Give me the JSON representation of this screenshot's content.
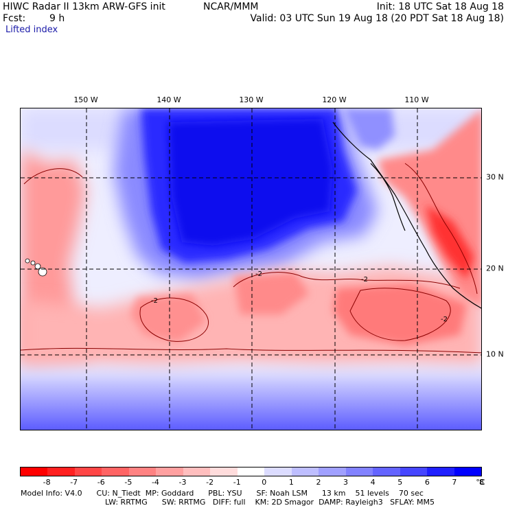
{
  "header": {
    "title": "HIWC Radar II 13km ARW-GFS init",
    "org": "NCAR/MMM",
    "fcst_label": "Fcst:",
    "fcst_value": "9 h",
    "init": "Init: 18 UTC Sat 18 Aug 18",
    "valid": "Valid: 03 UTC Sun 19 Aug 18 (20 PDT Sat 18 Aug 18)",
    "field": "Lifted index"
  },
  "axes": {
    "lon_labels": [
      "150 W",
      "140 W",
      "130 W",
      "120 W",
      "110 W"
    ],
    "lat_labels": [
      "30 N",
      "20 N",
      "10 N"
    ]
  },
  "contour_labels": [
    "-2",
    "-2",
    "-2",
    "-2"
  ],
  "colorbar": {
    "ticks": [
      "-8",
      "-7",
      "-6",
      "-5",
      "-4",
      "-3",
      "-2",
      "-1",
      "0",
      "1",
      "2",
      "3",
      "4",
      "5",
      "6",
      "7",
      "8"
    ],
    "unit": "°C",
    "colors": [
      "#ff0000",
      "#ff2020",
      "#ff4646",
      "#ff6464",
      "#ff8282",
      "#ffa0a0",
      "#ffbebe",
      "#ffdcdc",
      "#ffffff",
      "#dcdcff",
      "#bebeff",
      "#a0a0ff",
      "#8282ff",
      "#6464ff",
      "#4646ff",
      "#2020ff",
      "#0000ff"
    ]
  },
  "footer": {
    "line1": "Model Info: V4.0      CU: N_Tiedt  MP: Goddard      PBL: YSU      SF: Noah LSM      13 km    51 levels    70 sec",
    "line2": "LW: RRTMG      SW: RRTMG   DIFF: full    KM: 2D Smagor  DAMP: Rayleigh3   SFLAY: MM5"
  }
}
